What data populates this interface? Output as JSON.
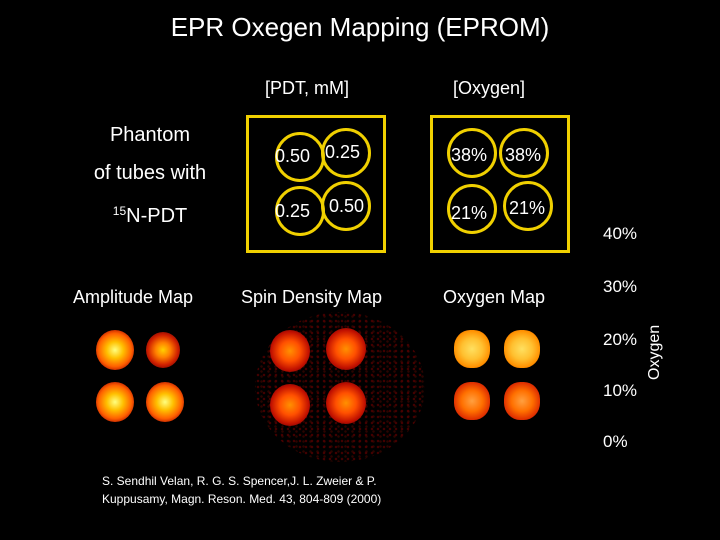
{
  "title": "EPR Oxegen Mapping (EPROM)",
  "headers": {
    "pdt": "[PDT, mM]",
    "oxygen": "[Oxygen]"
  },
  "phantom": {
    "line1": "Phantom",
    "line2": "of tubes with",
    "line3_sup": "15",
    "line3": "N-PDT"
  },
  "pdt_values": [
    "0.50",
    "0.25",
    "0.25",
    "0.50"
  ],
  "oxygen_values": [
    "38%",
    "38%",
    "21%",
    "21%"
  ],
  "map_labels": {
    "amplitude": "Amplitude Map",
    "spin": "Spin Density Map",
    "oxygen": "Oxygen Map"
  },
  "colorbar": {
    "ticks": [
      "40%",
      "30%",
      "20%",
      "10%",
      "0%"
    ],
    "axis_label": "Oxygen"
  },
  "citation": {
    "line1": "S. Sendhil Velan, R. G. S. Spencer,J. L.  Zweier & P.",
    "line2": "Kuppusamy, Magn. Reson. Med. 43, 804-809 (2000)"
  },
  "colors": {
    "box_border": "#f0d000",
    "background": "#000000",
    "text": "#ffffff"
  }
}
